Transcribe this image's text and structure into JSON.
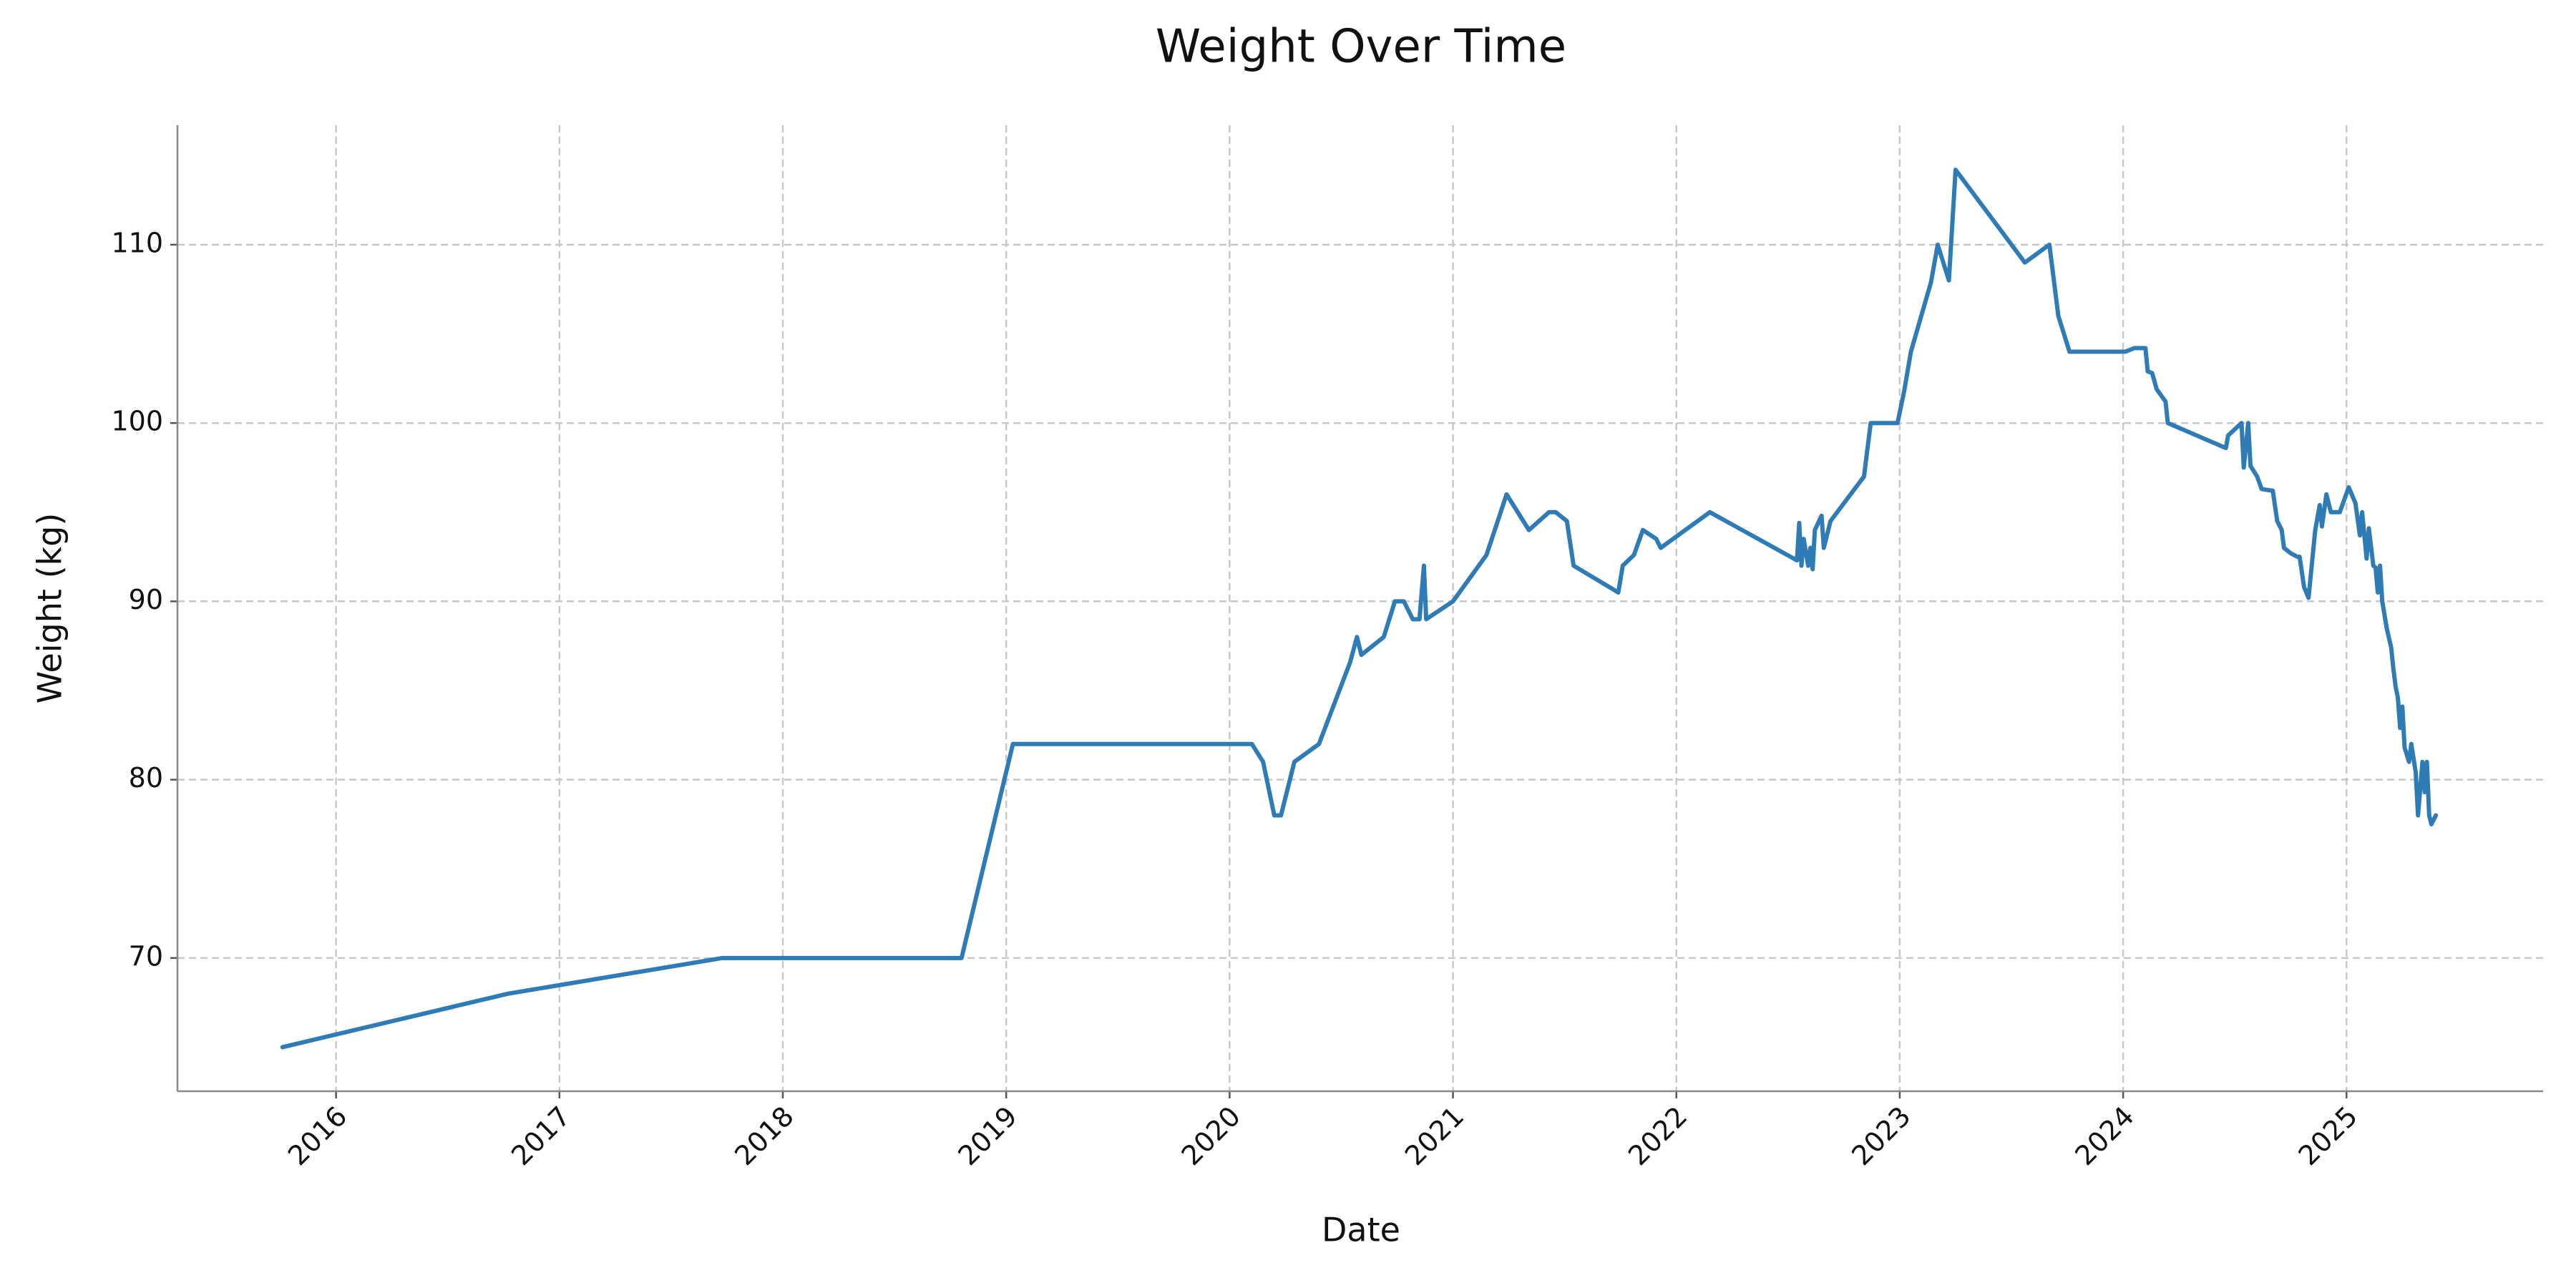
{
  "chart_data": {
    "type": "line",
    "title": "Weight Over Time",
    "xlabel": "Date",
    "ylabel": "Weight (kg)",
    "x": [
      2015.76,
      2016.77,
      2017.73,
      2018.8,
      2019.03,
      2020.1,
      2020.15,
      2020.2,
      2020.23,
      2020.29,
      2020.4,
      2020.54,
      2020.57,
      2020.59,
      2020.69,
      2020.74,
      2020.78,
      2020.82,
      2020.85,
      2020.87,
      2020.88,
      2021.0,
      2021.15,
      2021.24,
      2021.34,
      2021.43,
      2021.46,
      2021.51,
      2021.54,
      2021.74,
      2021.76,
      2021.81,
      2021.85,
      2021.91,
      2021.93,
      2022.15,
      2022.54,
      2022.55,
      2022.56,
      2022.57,
      2022.59,
      2022.6,
      2022.61,
      2022.62,
      2022.65,
      2022.66,
      2022.69,
      2022.84,
      2022.87,
      2022.99,
      2023.02,
      2023.05,
      2023.14,
      2023.17,
      2023.22,
      2023.25,
      2023.56,
      2023.67,
      2023.71,
      2023.76,
      2024.01,
      2024.05,
      2024.1,
      2024.11,
      2024.13,
      2024.15,
      2024.19,
      2024.2,
      2024.46,
      2024.47,
      2024.53,
      2024.54,
      2024.56,
      2024.57,
      2024.6,
      2024.62,
      2024.67,
      2024.69,
      2024.71,
      2024.72,
      2024.75,
      2024.78,
      2024.79,
      2024.81,
      2024.83,
      2024.86,
      2024.88,
      2024.89,
      2024.91,
      2024.93,
      2024.97,
      2025.01,
      2025.04,
      2025.06,
      2025.07,
      2025.09,
      2025.1,
      2025.12,
      2025.13,
      2025.14,
      2025.15,
      2025.16,
      2025.18,
      2025.2,
      2025.21,
      2025.22,
      2025.23,
      2025.24,
      2025.25,
      2025.26,
      2025.28,
      2025.29,
      2025.31,
      2025.32,
      2025.34,
      2025.35,
      2025.36,
      2025.37,
      2025.38,
      2025.4
    ],
    "values": [
      65.0,
      68.0,
      70,
      70,
      82,
      82,
      81,
      78,
      78,
      81,
      82,
      86.6,
      88,
      87,
      88,
      90,
      90,
      89,
      89,
      92,
      89,
      90,
      92.6,
      96,
      94,
      95,
      95,
      94.5,
      92,
      90.5,
      92,
      92.6,
      94,
      93.5,
      93,
      95,
      92.3,
      94.4,
      92,
      93.5,
      92,
      93,
      91.8,
      94,
      94.8,
      93,
      94.5,
      97,
      100,
      100,
      101.8,
      104,
      107.9,
      110,
      108,
      114.2,
      109,
      110,
      106,
      104,
      104,
      104.2,
      104.2,
      102.9,
      102.8,
      101.9,
      101.2,
      100,
      98.6,
      99.3,
      100,
      97.5,
      100,
      97.6,
      97,
      96.3,
      96.2,
      94.5,
      94,
      93,
      92.7,
      92.5,
      92.5,
      90.8,
      90.2,
      94,
      95.4,
      94.2,
      96,
      95,
      95,
      96.4,
      95.5,
      93.7,
      95,
      92.4,
      94.1,
      92,
      91.9,
      90.5,
      92,
      90,
      88.5,
      87.4,
      86.2,
      85.2,
      84.6,
      82.9,
      84.1,
      81.8,
      81,
      82,
      80.4,
      78,
      81,
      79.3,
      81,
      78,
      77.5,
      78
    ],
    "color": "#2e7bb6",
    "xlim": [
      2015.29,
      2025.88
    ],
    "xticks": [
      2016,
      2017,
      2018,
      2019,
      2020,
      2021,
      2022,
      2023,
      2024,
      2025
    ],
    "ylim": [
      62.53,
      116.7
    ],
    "yticks": [
      70,
      80,
      90,
      100,
      110
    ],
    "grid": true
  }
}
